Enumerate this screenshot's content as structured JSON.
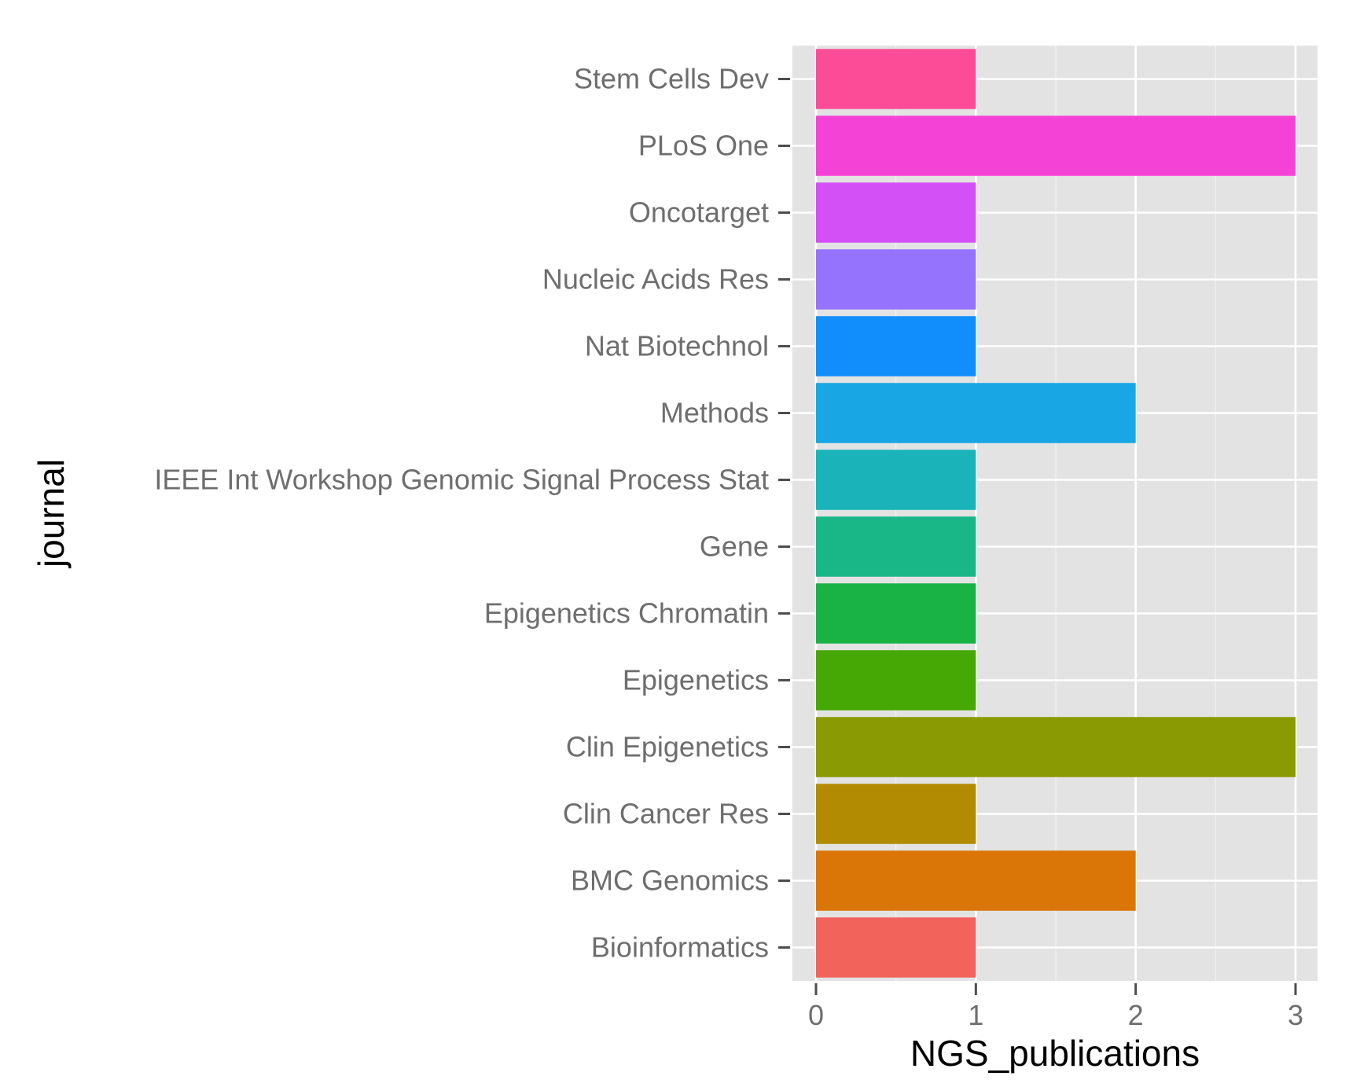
{
  "chart_data": {
    "type": "bar",
    "orientation": "horizontal",
    "xlabel": "NGS_publications",
    "ylabel": "journal",
    "xlim": [
      0,
      3
    ],
    "x_ticks": [
      "0",
      "1",
      "2",
      "3"
    ],
    "grid": true,
    "legend": "none",
    "categories": [
      "Bioinformatics",
      "BMC Genomics",
      "Clin Cancer Res",
      "Clin Epigenetics",
      "Epigenetics",
      "Epigenetics Chromatin",
      "Gene",
      "IEEE Int Workshop Genomic Signal Process Stat",
      "Methods",
      "Nat Biotechnol",
      "Nucleic Acids Res",
      "Oncotarget",
      "PLoS One",
      "Stem Cells Dev"
    ],
    "values": [
      1,
      2,
      1,
      3,
      1,
      1,
      1,
      1,
      2,
      1,
      1,
      1,
      3,
      1
    ],
    "colors": [
      "#f2635c",
      "#da7608",
      "#b38b03",
      "#8a9a03",
      "#46a804",
      "#19b245",
      "#19b787",
      "#1ab3ba",
      "#18a6e4",
      "#118efc",
      "#9573fd",
      "#d350f6",
      "#f542d6",
      "#fd4c97"
    ],
    "panel_background": "#e3e3e3",
    "grid_color": "#ffffff"
  }
}
